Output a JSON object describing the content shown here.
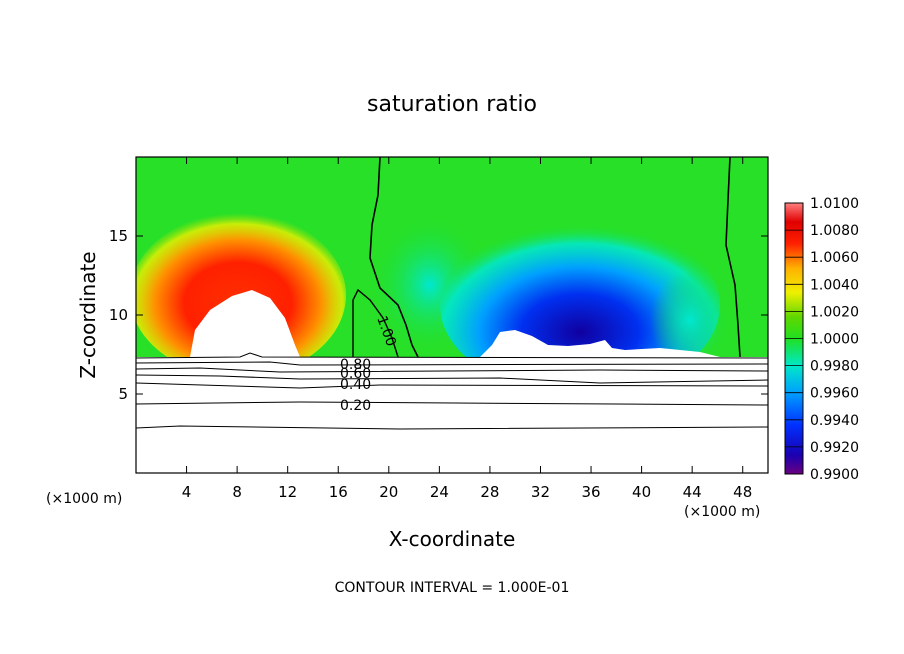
{
  "chart_data": {
    "type": "heatmap",
    "title": "saturation ratio",
    "xlabel": "X-coordinate",
    "ylabel": "Z-coordinate",
    "x_unit_label": "(×1000 m)",
    "z_unit_label": "(×1000 m)",
    "xlim": [
      0,
      50
    ],
    "ylim": [
      0,
      20
    ],
    "x_ticks": [
      "4",
      "8",
      "12",
      "16",
      "20",
      "24",
      "28",
      "32",
      "36",
      "40",
      "44",
      "48"
    ],
    "y_ticks": [
      "5",
      "10",
      "15"
    ],
    "colorbar": {
      "min": 0.99,
      "max": 1.01,
      "ticks": [
        "1.0100",
        "1.0080",
        "1.0060",
        "1.0040",
        "1.0020",
        "1.0000",
        "0.9980",
        "0.9960",
        "0.9940",
        "0.9920",
        "0.9900"
      ]
    },
    "contour_labels": [
      "0.80",
      "0.60",
      "0.40",
      "0.20",
      "1.00"
    ],
    "footer": "CONTOUR INTERVAL = 1.000E-01"
  }
}
